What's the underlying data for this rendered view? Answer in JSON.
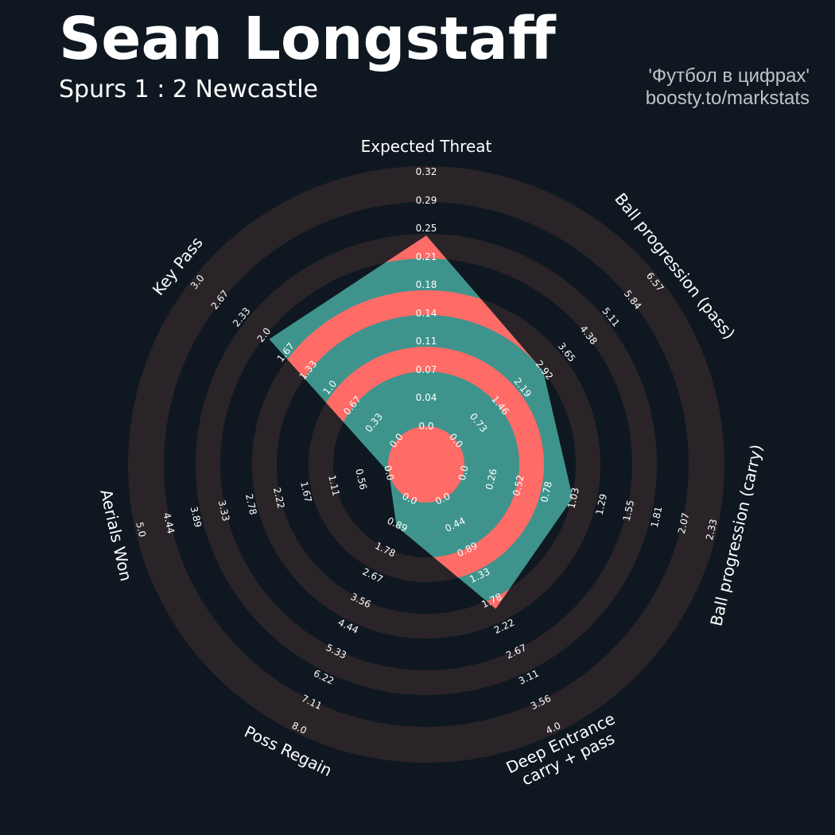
{
  "header": {
    "title": "Sean Longstaff",
    "subtitle": "Spurs 1 : 2 Newcastle",
    "credit_line1": "'Футбол в цифрах'",
    "credit_line2": "boosty.to/markstats"
  },
  "colors": {
    "background": "#0f1820",
    "rings": "#2a2428",
    "player_fill": "#3e948d",
    "player_ring": "#ff6b66"
  },
  "chart_data": {
    "type": "radar",
    "title": "Sean Longstaff",
    "subtitle": "Spurs 1 : 2 Newcastle",
    "params": [
      {
        "label": "Expected Threat",
        "min": 0.0,
        "max": 0.32,
        "value": 0.25,
        "ticks": [
          "0.0",
          "0.04",
          "0.07",
          "0.11",
          "0.14",
          "0.18",
          "0.21",
          "0.25",
          "0.29",
          "0.32"
        ]
      },
      {
        "label": "Ball progression (pass)",
        "min": 0.0,
        "max": 6.57,
        "value": 3.0,
        "ticks": [
          "0.0",
          "0.73",
          "1.46",
          "2.19",
          "2.92",
          "3.65",
          "4.38",
          "5.11",
          "5.84",
          "6.57"
        ]
      },
      {
        "label": "Ball progression (carry)",
        "min": 0.0,
        "max": 2.33,
        "value": 1.07,
        "ticks": [
          "0.0",
          "0.26",
          "0.52",
          "0.78",
          "1.03",
          "1.29",
          "1.55",
          "1.81",
          "2.07",
          "2.33"
        ]
      },
      {
        "label": "Deep Entrance\ncarry + pass",
        "min": 0.0,
        "max": 4.0,
        "value": 2.0,
        "ticks": [
          "0.0",
          "0.44",
          "0.89",
          "1.33",
          "1.78",
          "2.22",
          "2.67",
          "3.11",
          "3.56",
          "4.0"
        ]
      },
      {
        "label": "Poss Regain",
        "min": 0.0,
        "max": 8.0,
        "value": 1.0,
        "ticks": [
          "0.0",
          "0.89",
          "1.78",
          "2.67",
          "3.56",
          "4.44",
          "5.33",
          "6.22",
          "7.11",
          "8.0"
        ]
      },
      {
        "label": "Aerials Won",
        "min": 0.0,
        "max": 5.0,
        "value": 0.0,
        "ticks": [
          "0.0",
          "0.56",
          "1.11",
          "1.67",
          "2.22",
          "2.78",
          "3.33",
          "3.89",
          "4.44",
          "5.0"
        ]
      },
      {
        "label": "Key Pass",
        "min": 0.0,
        "max": 3.0,
        "value": 2.0,
        "ticks": [
          "0.0",
          "0.33",
          "0.67",
          "1.0",
          "1.33",
          "1.67",
          "2.0",
          "2.33",
          "2.67",
          "3.0"
        ]
      }
    ]
  }
}
